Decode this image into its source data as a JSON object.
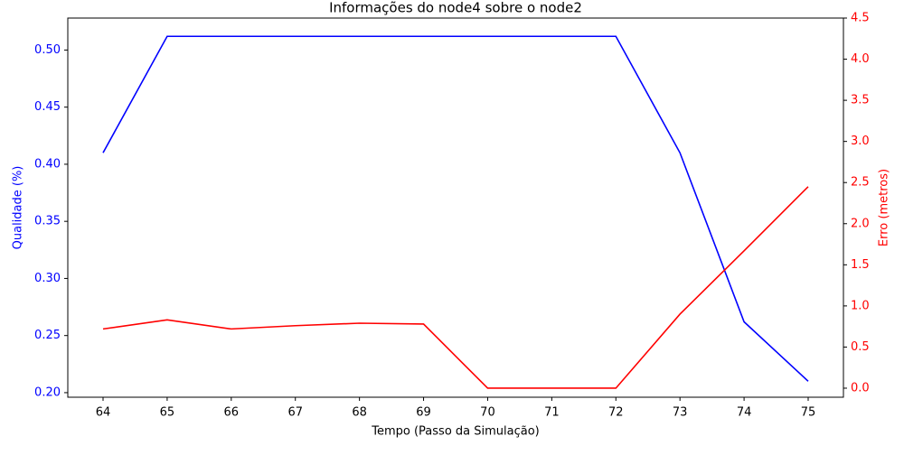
{
  "chart_data": {
    "type": "line",
    "title": "Informações do node4 sobre o node2",
    "x_label": "Tempo (Passo da Simulação)",
    "y_label": "Qualidade (%)",
    "y2_label": "Erro (metros)",
    "x": [
      64,
      65,
      66,
      67,
      68,
      69,
      70,
      71,
      72,
      73,
      74,
      75
    ],
    "series": [
      {
        "name": "Qualidade",
        "color": "#0000ff",
        "axis": "y",
        "values": [
          0.41,
          0.512,
          0.512,
          0.512,
          0.512,
          0.512,
          0.512,
          0.512,
          0.512,
          0.41,
          0.262,
          0.21
        ]
      },
      {
        "name": "Erro",
        "color": "#ff0000",
        "axis": "y2",
        "values": [
          0.72,
          0.83,
          0.72,
          0.76,
          0.79,
          0.78,
          0,
          0,
          0,
          0.9,
          1.67,
          2.45
        ]
      }
    ],
    "xlim": [
      63.45,
      75.55
    ],
    "xticks": [
      64,
      65,
      66,
      67,
      68,
      69,
      70,
      71,
      72,
      73,
      74,
      75
    ],
    "ylim": [
      0.196,
      0.528
    ],
    "yticks": [
      {
        "value": 0.2,
        "label": "0.20"
      },
      {
        "value": 0.25,
        "label": "0.25"
      },
      {
        "value": 0.3,
        "label": "0.30"
      },
      {
        "value": 0.35,
        "label": "0.35"
      },
      {
        "value": 0.4,
        "label": "0.40"
      },
      {
        "value": 0.45,
        "label": "0.45"
      },
      {
        "value": 0.5,
        "label": "0.50"
      }
    ],
    "y2lim": [
      -0.11,
      4.5
    ],
    "y2ticks": [
      {
        "value": 0,
        "label": "0.0"
      },
      {
        "value": 0.5,
        "label": "0.5"
      },
      {
        "value": 1,
        "label": "1.0"
      },
      {
        "value": 1.5,
        "label": "1.5"
      },
      {
        "value": 2,
        "label": "2.0"
      },
      {
        "value": 2.5,
        "label": "2.5"
      },
      {
        "value": 3,
        "label": "3.0"
      },
      {
        "value": 3.5,
        "label": "3.5"
      },
      {
        "value": 4,
        "label": "4.0"
      },
      {
        "value": 4.5,
        "label": "4.5"
      }
    ]
  }
}
